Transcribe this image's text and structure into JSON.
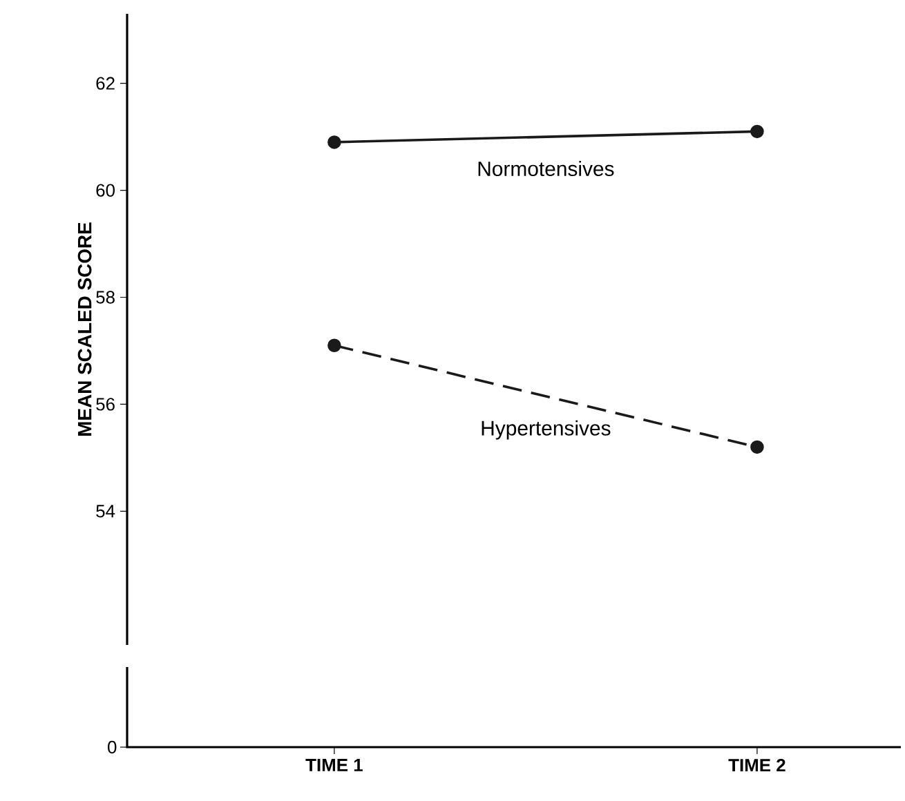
{
  "chart_data": {
    "type": "line",
    "ylabel": "MEAN SCALED SCORE",
    "categories": [
      "TIME 1",
      "TIME 2"
    ],
    "ylim": [
      51.5,
      63.3
    ],
    "yticks": [
      54,
      56,
      58,
      60,
      62
    ],
    "marker": "circle",
    "annotations": [
      "0"
    ],
    "series": [
      {
        "name": "Normotensives",
        "color": "#1a1a1a",
        "values": [
          60.9,
          61.1
        ],
        "line_style": "solid"
      },
      {
        "name": "Hypertensives",
        "color": "#1a1a1a",
        "values": [
          57.1,
          55.2
        ],
        "line_style": "dashed"
      }
    ]
  }
}
